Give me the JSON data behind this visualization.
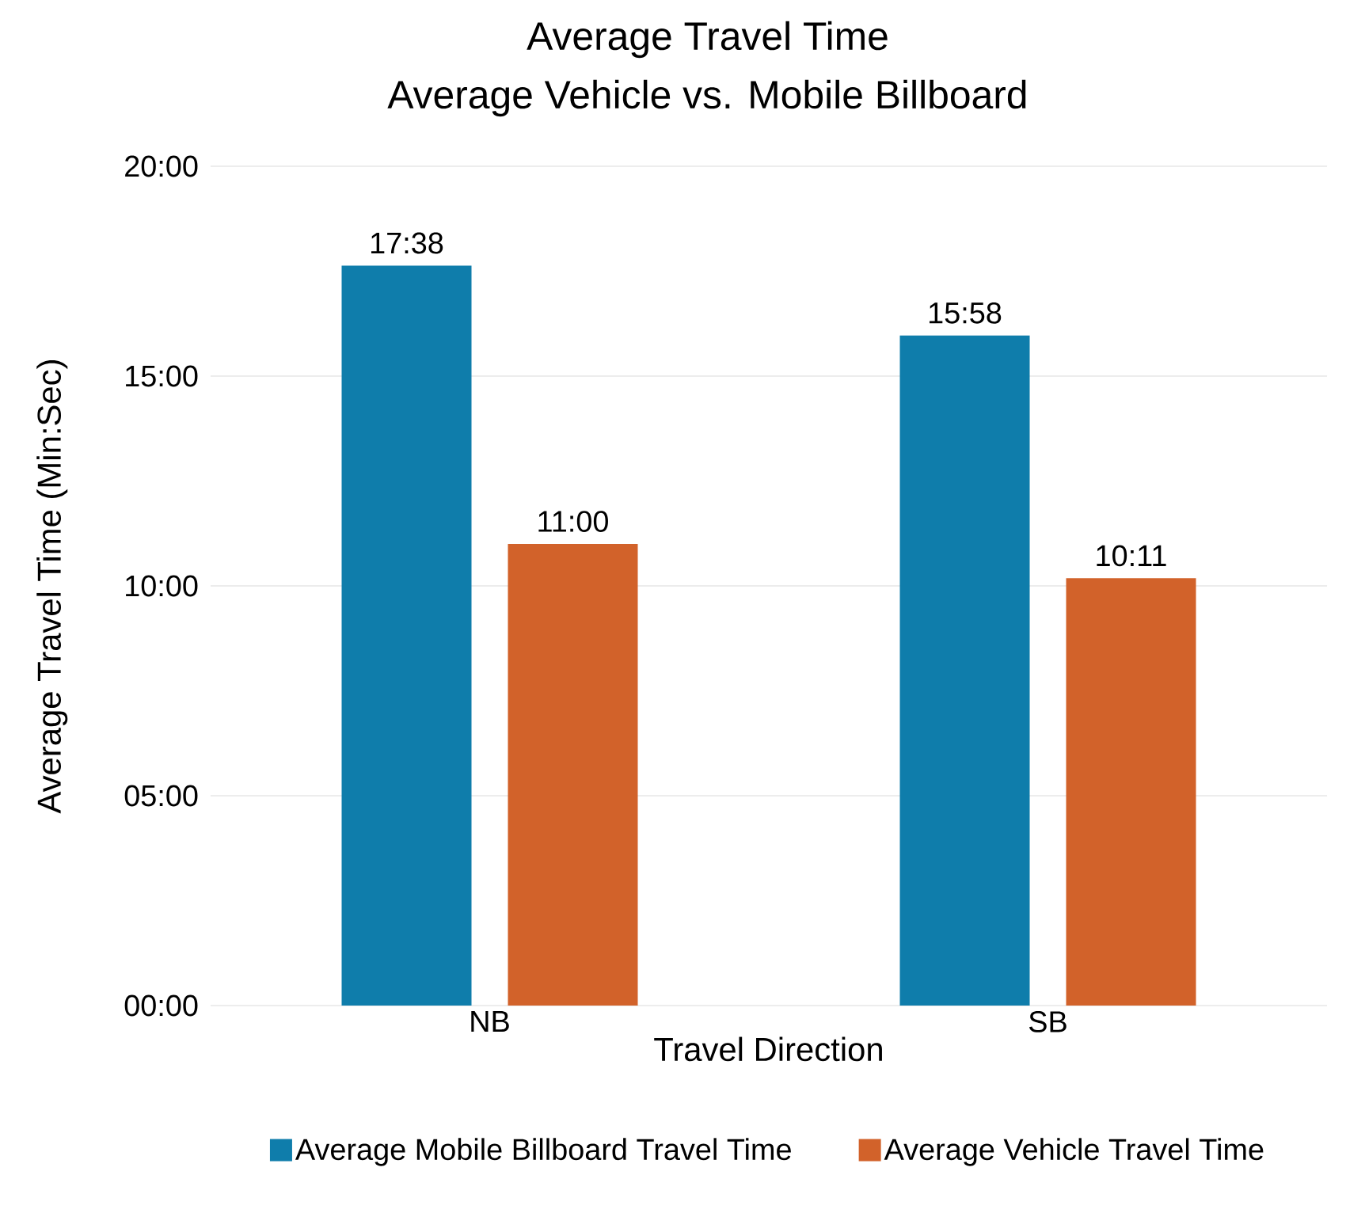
{
  "chart_data": {
    "type": "bar",
    "title": "Average Travel Time",
    "subtitle": "Average Vehicle vs. Mobile Billboard",
    "xlabel": "Travel Direction",
    "ylabel": "Average Travel Time (Min:Sec)",
    "categories": [
      "NB",
      "SB"
    ],
    "series": [
      {
        "name": "Average Mobile Billboard Travel Time",
        "color": "#0f7dab",
        "values": [
          17.633,
          15.967
        ],
        "value_labels": [
          "17:38",
          "15:58"
        ]
      },
      {
        "name": "Average Vehicle Travel Time",
        "color": "#d2622a",
        "values": [
          11,
          10.183
        ],
        "value_labels": [
          "11:00",
          "10:11"
        ]
      }
    ],
    "ylim": [
      0,
      20
    ],
    "yticks": [
      {
        "value": 0,
        "label": "00:00"
      },
      {
        "value": 5,
        "label": "05:00"
      },
      {
        "value": 10,
        "label": "10:00"
      },
      {
        "value": 15,
        "label": "15:00"
      },
      {
        "value": 20,
        "label": "20:00"
      }
    ],
    "grid": "y",
    "legend": "bottom"
  }
}
